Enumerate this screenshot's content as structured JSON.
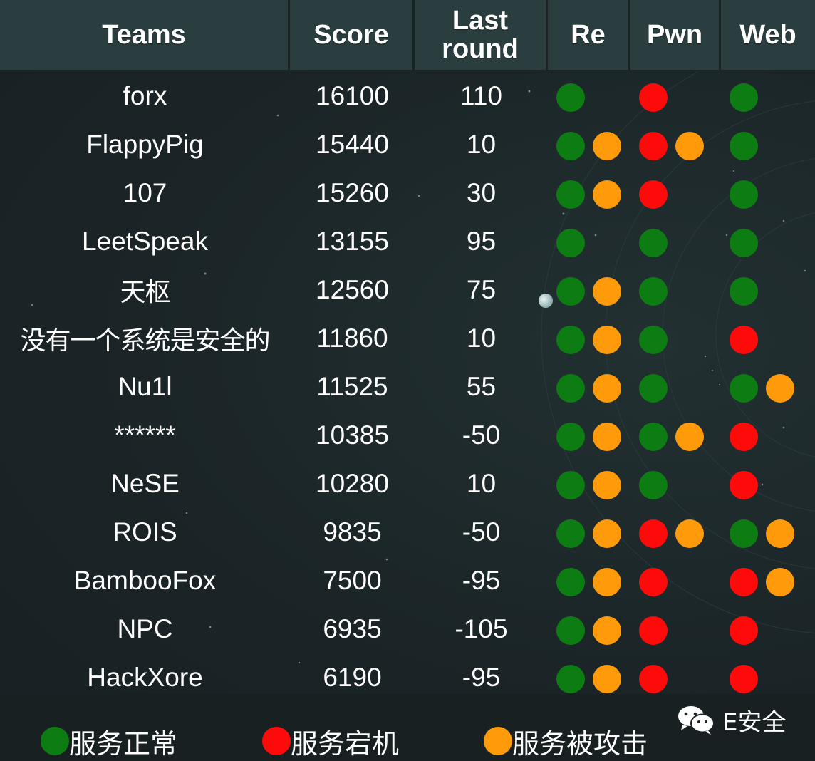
{
  "header": {
    "teams": "Teams",
    "score": "Score",
    "last_round_line1": "Last",
    "last_round_line2": "round",
    "re": "Re",
    "pwn": "Pwn",
    "web": "Web"
  },
  "colors": {
    "ok": "#0d7c12",
    "down": "#ff0a0a",
    "attacked": "#ff9a0a",
    "header_bg": "#2a3e3f"
  },
  "rows": [
    {
      "team": "forx",
      "score": "16100",
      "last": "110",
      "re": [
        "ok",
        ""
      ],
      "pwn": [
        "down",
        ""
      ],
      "web": [
        "ok",
        ""
      ]
    },
    {
      "team": "FlappyPig",
      "score": "15440",
      "last": "10",
      "re": [
        "ok",
        "attacked"
      ],
      "pwn": [
        "down",
        "attacked"
      ],
      "web": [
        "ok",
        ""
      ]
    },
    {
      "team": "107",
      "score": "15260",
      "last": "30",
      "re": [
        "ok",
        "attacked"
      ],
      "pwn": [
        "down",
        ""
      ],
      "web": [
        "ok",
        ""
      ]
    },
    {
      "team": "LeetSpeak",
      "score": "13155",
      "last": "95",
      "re": [
        "ok",
        ""
      ],
      "pwn": [
        "ok",
        ""
      ],
      "web": [
        "ok",
        ""
      ]
    },
    {
      "team": "天枢",
      "score": "12560",
      "last": "75",
      "re": [
        "ok",
        "attacked"
      ],
      "pwn": [
        "ok",
        ""
      ],
      "web": [
        "ok",
        ""
      ]
    },
    {
      "team": "没有一个系统是安全的",
      "score": "11860",
      "last": "10",
      "re": [
        "ok",
        "attacked"
      ],
      "pwn": [
        "ok",
        ""
      ],
      "web": [
        "down",
        ""
      ]
    },
    {
      "team": "Nu1l",
      "score": "11525",
      "last": "55",
      "re": [
        "ok",
        "attacked"
      ],
      "pwn": [
        "ok",
        ""
      ],
      "web": [
        "ok",
        "attacked"
      ]
    },
    {
      "team": "******",
      "score": "10385",
      "last": "-50",
      "re": [
        "ok",
        "attacked"
      ],
      "pwn": [
        "ok",
        "attacked"
      ],
      "web": [
        "down",
        ""
      ]
    },
    {
      "team": "NeSE",
      "score": "10280",
      "last": "10",
      "re": [
        "ok",
        "attacked"
      ],
      "pwn": [
        "ok",
        ""
      ],
      "web": [
        "down",
        ""
      ]
    },
    {
      "team": "ROIS",
      "score": "9835",
      "last": "-50",
      "re": [
        "ok",
        "attacked"
      ],
      "pwn": [
        "down",
        "attacked"
      ],
      "web": [
        "ok",
        "attacked"
      ]
    },
    {
      "team": "BambooFox",
      "score": "7500",
      "last": "-95",
      "re": [
        "ok",
        "attacked"
      ],
      "pwn": [
        "down",
        ""
      ],
      "web": [
        "down",
        "attacked"
      ]
    },
    {
      "team": "NPC",
      "score": "6935",
      "last": "-105",
      "re": [
        "ok",
        "attacked"
      ],
      "pwn": [
        "down",
        ""
      ],
      "web": [
        "down",
        ""
      ]
    },
    {
      "team": "HackXore",
      "score": "6190",
      "last": "-95",
      "re": [
        "ok",
        "attacked"
      ],
      "pwn": [
        "down",
        ""
      ],
      "web": [
        "down",
        ""
      ]
    }
  ],
  "legend": {
    "ok": "服务正常",
    "down": "服务宕机",
    "attacked": "服务被攻击"
  },
  "watermark": {
    "text": "E安全",
    "icon": "wechat-icon"
  }
}
